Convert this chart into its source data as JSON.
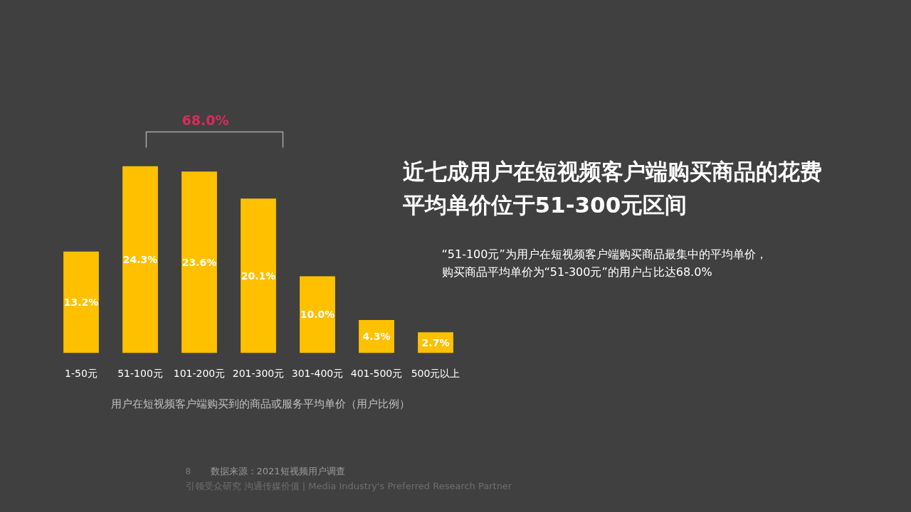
{
  "chart_data": {
    "type": "bar",
    "title": "近七成用户在短视频客户端购买商品的花费平均单价位于51-300元区间",
    "subtitle": "“51-100元”为用户在短视频客户端购买商品最集中的平均单价，购买商品平均单价为“51-300元”的用户占比达68.0%",
    "xlabel": "用户在短视频客户端购买到的商品或服务平均单价（用户比例）",
    "categories": [
      "1-50元",
      "51-100元",
      "101-200元",
      "201-300元",
      "301-400元",
      "401-500元",
      "500元以上"
    ],
    "values": [
      13.2,
      24.3,
      23.6,
      20.1,
      10.0,
      4.3,
      2.7
    ],
    "value_labels": [
      "13.2%",
      "24.3%",
      "23.6%",
      "20.1%",
      "10.0%",
      "4.3%",
      "2.7%"
    ],
    "color": "#ffc000",
    "tick_labels": "x",
    "grid": false,
    "annotations": [
      "68.0%",
      "8",
      "数据来源：2021短视频用户调查",
      "引领受众研究 沟通传媒价值 | Media Industry's Preferred Research Partner"
    ]
  }
}
